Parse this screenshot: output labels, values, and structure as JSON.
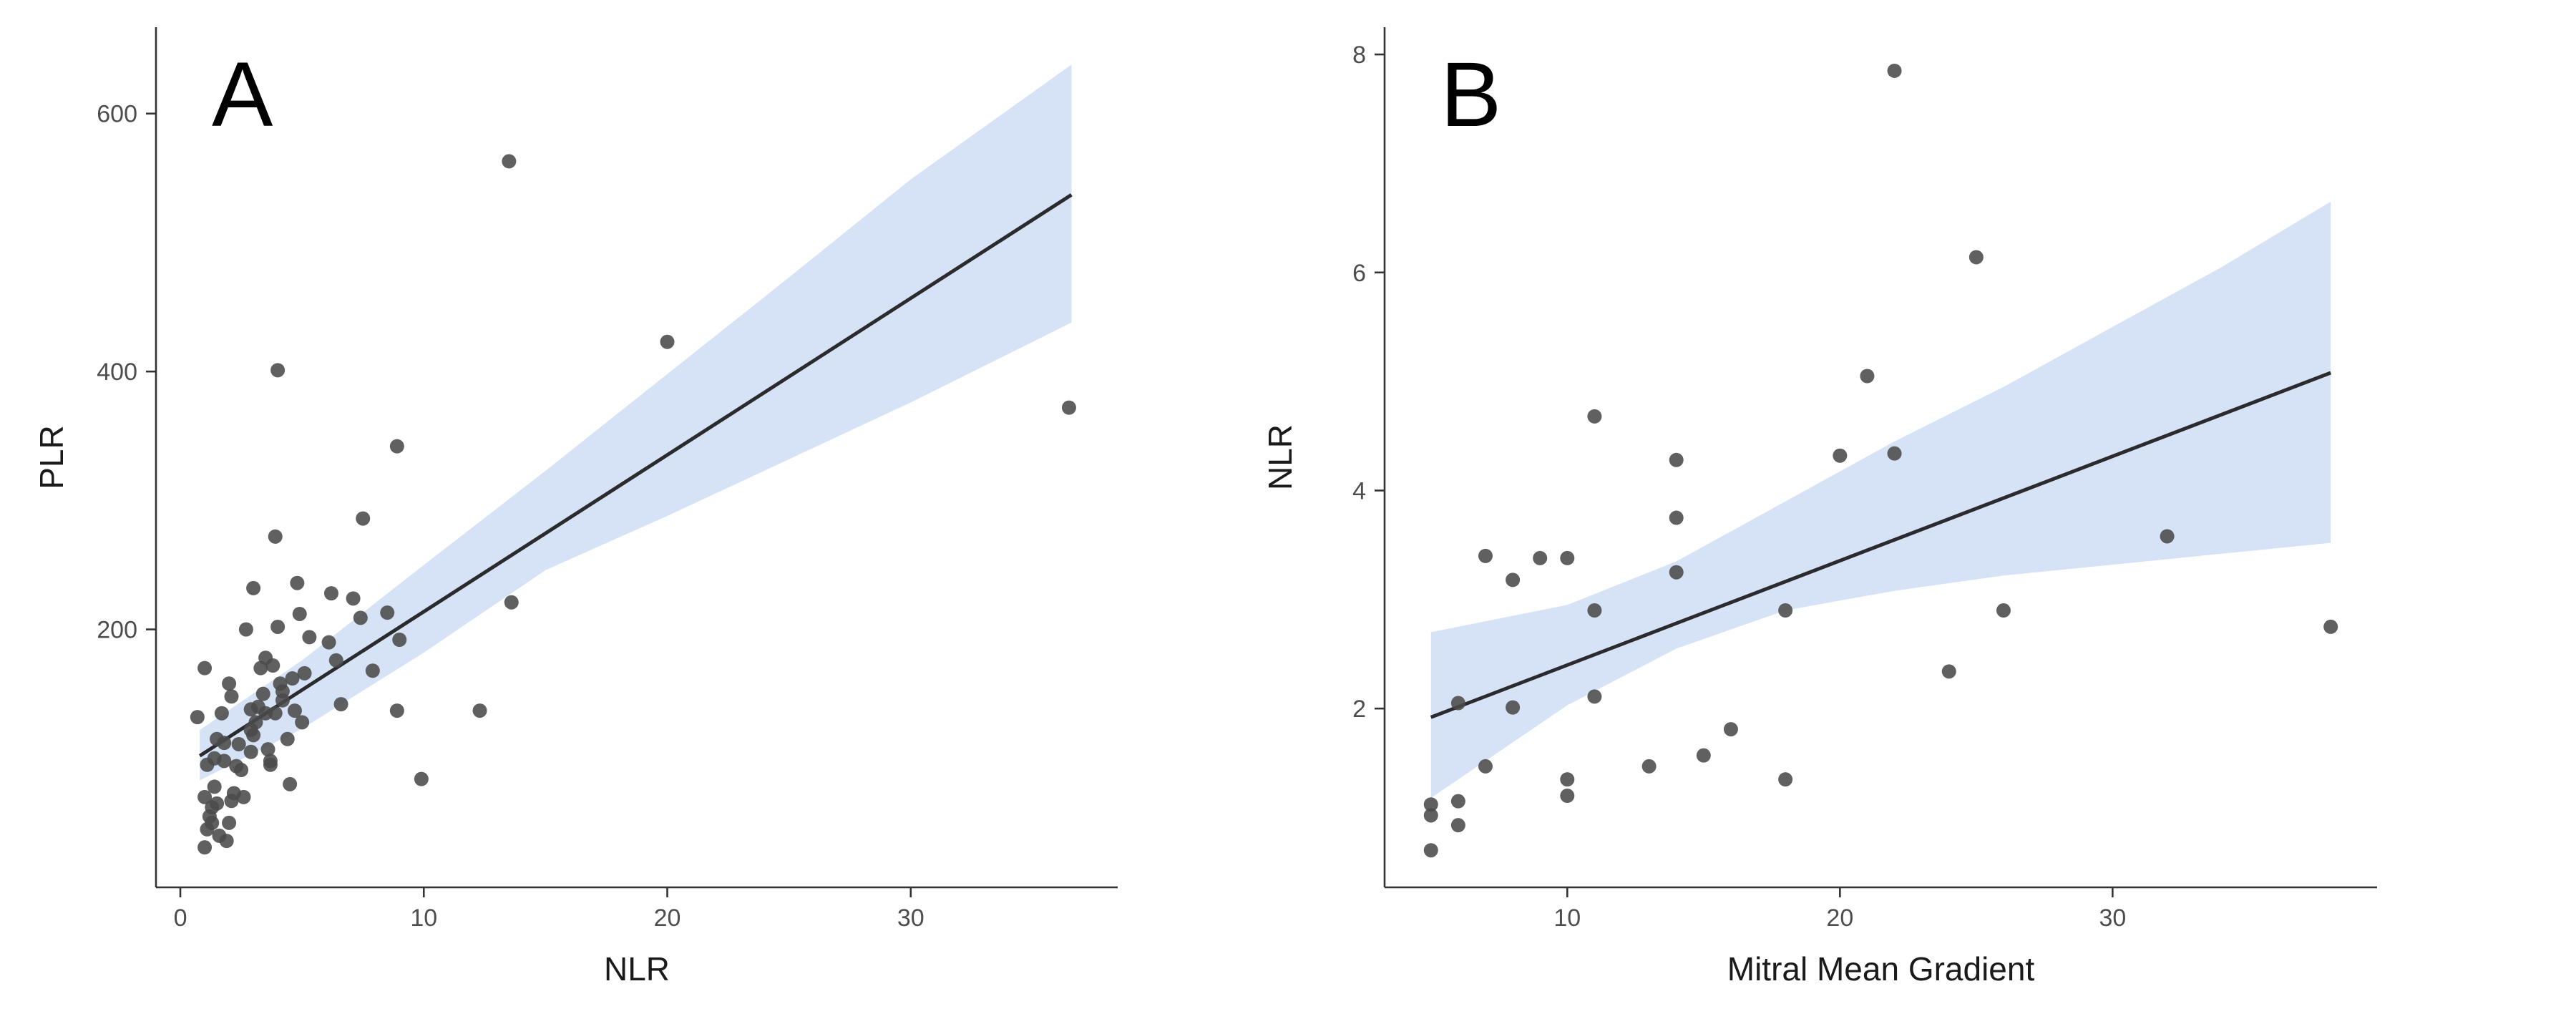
{
  "colors": {
    "point": "#4a4a4a",
    "fit_line": "#2b2b2e",
    "confidence_band": "#d6e2f5"
  },
  "chart_data": [
    {
      "type": "scatter",
      "panel_label": "A",
      "xlabel": "NLR",
      "ylabel": "PLR",
      "xlim": [
        -1,
        38.5
      ],
      "ylim": [
        0,
        667
      ],
      "xticks": [
        0,
        10,
        20,
        30
      ],
      "yticks": [
        200,
        400,
        600
      ],
      "grid": false,
      "legend": "none",
      "fit": {
        "x": [
          0.8,
          36.6
        ],
        "y": [
          102,
          537
        ]
      },
      "band": {
        "x": [
          0.8,
          5,
          10,
          15,
          20,
          25,
          30,
          36.6
        ],
        "upper": [
          122,
          176,
          250,
          323,
          398,
          473,
          549,
          638
        ],
        "lower": [
          83,
          123,
          182,
          246,
          288,
          332,
          376,
          438
        ]
      },
      "points": [
        [
          0.7,
          132
        ],
        [
          1.0,
          170
        ],
        [
          1.1,
          95
        ],
        [
          1.0,
          70
        ],
        [
          1.1,
          45
        ],
        [
          1.2,
          55
        ],
        [
          1.3,
          62
        ],
        [
          1.4,
          78
        ],
        [
          1.5,
          115
        ],
        [
          1.7,
          135
        ],
        [
          1.8,
          98
        ],
        [
          1.6,
          40
        ],
        [
          1.9,
          36
        ],
        [
          2.0,
          50
        ],
        [
          2.1,
          67
        ],
        [
          2.2,
          73
        ],
        [
          1.0,
          31
        ],
        [
          1.3,
          50
        ],
        [
          1.5,
          65
        ],
        [
          2.3,
          94
        ],
        [
          2.4,
          111
        ],
        [
          2.0,
          158
        ],
        [
          2.1,
          148
        ],
        [
          2.5,
          91
        ],
        [
          2.6,
          70
        ],
        [
          2.7,
          200
        ],
        [
          2.9,
          105
        ],
        [
          3.0,
          118
        ],
        [
          3.1,
          128
        ],
        [
          3.2,
          140
        ],
        [
          3.0,
          232
        ],
        [
          3.3,
          170
        ],
        [
          3.4,
          150
        ],
        [
          3.5,
          178
        ],
        [
          3.6,
          107
        ],
        [
          3.7,
          98
        ],
        [
          3.7,
          95
        ],
        [
          3.8,
          172
        ],
        [
          3.9,
          135
        ],
        [
          4.0,
          202
        ],
        [
          4.1,
          158
        ],
        [
          4.2,
          145
        ],
        [
          3.9,
          272
        ],
        [
          4.0,
          401
        ],
        [
          4.4,
          115
        ],
        [
          4.5,
          80
        ],
        [
          4.6,
          162
        ],
        [
          4.7,
          137
        ],
        [
          4.8,
          236
        ],
        [
          5.0,
          128
        ],
        [
          4.9,
          212
        ],
        [
          5.1,
          166
        ],
        [
          5.3,
          194
        ],
        [
          6.1,
          190
        ],
        [
          6.2,
          228
        ],
        [
          6.4,
          176
        ],
        [
          6.6,
          142
        ],
        [
          7.1,
          224
        ],
        [
          7.4,
          209
        ],
        [
          7.5,
          286
        ],
        [
          7.9,
          168
        ],
        [
          8.5,
          213
        ],
        [
          8.9,
          342
        ],
        [
          9.0,
          192
        ],
        [
          8.9,
          137
        ],
        [
          9.9,
          84
        ],
        [
          12.3,
          137
        ],
        [
          13.5,
          563
        ],
        [
          13.6,
          221
        ],
        [
          20.0,
          423
        ],
        [
          36.5,
          372
        ],
        [
          2.9,
          138
        ],
        [
          2.9,
          122
        ],
        [
          3.5,
          135
        ],
        [
          4.2,
          152
        ],
        [
          1.8,
          112
        ],
        [
          1.4,
          100
        ]
      ]
    },
    {
      "type": "scatter",
      "panel_label": "B",
      "xlabel": "Mitral Mean Gradient",
      "ylabel": "NLR",
      "xlim": [
        3.3,
        39.7
      ],
      "ylim": [
        0.36,
        8.25
      ],
      "xticks": [
        10,
        20,
        30
      ],
      "yticks": [
        2,
        4,
        6,
        8
      ],
      "grid": false,
      "legend": "none",
      "fit": {
        "x": [
          5,
          38
        ],
        "y": [
          1.92,
          5.08
        ]
      },
      "band": {
        "x": [
          5,
          10,
          14,
          18,
          22,
          26,
          30,
          34,
          38
        ],
        "upper": [
          2.7,
          2.95,
          3.35,
          3.9,
          4.45,
          4.95,
          5.5,
          6.05,
          6.65
        ],
        "lower": [
          1.18,
          2.03,
          2.55,
          2.9,
          3.08,
          3.22,
          3.32,
          3.42,
          3.52
        ]
      },
      "points": [
        [
          5,
          1.12
        ],
        [
          5,
          1.02
        ],
        [
          5,
          0.7
        ],
        [
          6,
          2.05
        ],
        [
          6,
          1.15
        ],
        [
          6,
          0.93
        ],
        [
          7,
          3.4
        ],
        [
          7,
          1.47
        ],
        [
          8,
          3.18
        ],
        [
          8,
          2.01
        ],
        [
          9,
          3.38
        ],
        [
          10,
          3.38
        ],
        [
          10,
          1.35
        ],
        [
          10,
          1.2
        ],
        [
          11,
          4.68
        ],
        [
          11,
          2.9
        ],
        [
          11,
          2.11
        ],
        [
          13,
          1.47
        ],
        [
          14,
          4.28
        ],
        [
          14,
          3.75
        ],
        [
          14,
          3.25
        ],
        [
          15,
          1.57
        ],
        [
          16,
          1.81
        ],
        [
          18,
          2.9
        ],
        [
          18,
          1.35
        ],
        [
          20,
          4.32
        ],
        [
          21,
          5.05
        ],
        [
          22,
          7.85
        ],
        [
          22,
          4.34
        ],
        [
          24,
          2.34
        ],
        [
          25,
          6.14
        ],
        [
          26,
          2.9
        ],
        [
          32,
          3.58
        ],
        [
          38,
          2.75
        ]
      ]
    }
  ]
}
